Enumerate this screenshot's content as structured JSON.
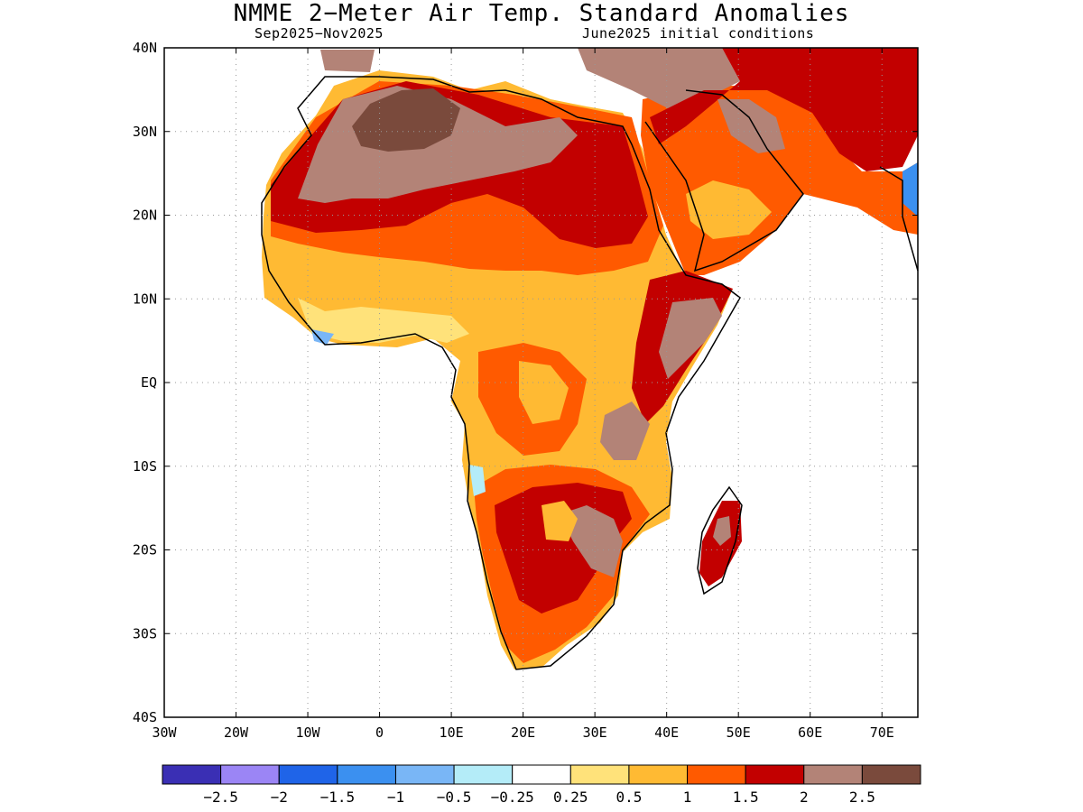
{
  "title": "NMME 2−Meter Air Temp. Standard Anomalies",
  "period": "Sep2025−Nov2025",
  "initial_conditions": "June2025 initial conditions",
  "map": {
    "lon_range": [
      -30,
      75
    ],
    "lat_range": [
      -40,
      40
    ],
    "lat_labels": [
      "40N",
      "30N",
      "20N",
      "10N",
      "EQ",
      "10S",
      "20S",
      "30S",
      "40S"
    ],
    "lon_labels": [
      "30W",
      "20W",
      "10W",
      "0",
      "10E",
      "20E",
      "30E",
      "40E",
      "50E",
      "60E",
      "70E"
    ],
    "gridlines": true
  },
  "colorbar": {
    "colors": [
      "#3a2fb4",
      "#9b85f5",
      "#1f64e8",
      "#3b90f0",
      "#79b6f6",
      "#b4ecf8",
      "#ffffff",
      "#ffe27a",
      "#ffba33",
      "#ff5a00",
      "#c20000",
      "#b38377",
      "#7a4a3c"
    ],
    "labels": [
      "−2.5",
      "−2",
      "−1.5",
      "−1",
      "−0.5",
      "−0.25",
      "0.25",
      "0.5",
      "1",
      "1.5",
      "2",
      "2.5"
    ]
  }
}
